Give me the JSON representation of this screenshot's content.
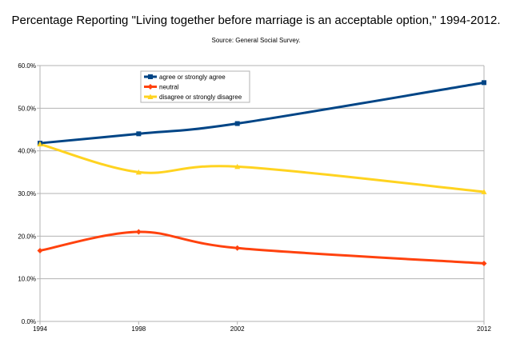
{
  "chart_data": {
    "type": "line",
    "title": "Percentage Reporting \"Living together before marriage is an acceptable option,\" 1994-2012.",
    "subtitle": "Source: General Social Survey.",
    "x": [
      1994,
      1998,
      2002,
      2012
    ],
    "x_tick_labels": [
      "1994",
      "1998",
      "2002",
      "2012"
    ],
    "ylim": [
      0,
      60
    ],
    "y_ticks": [
      0,
      10,
      20,
      30,
      40,
      50,
      60
    ],
    "y_tick_labels": [
      "0.0%",
      "10.0%",
      "20.0%",
      "30.0%",
      "40.0%",
      "50.0%",
      "60.0%"
    ],
    "grid": "horizontal",
    "legend_placement": "top-left (inside plot)",
    "series": [
      {
        "name": "agree or strongly agree",
        "color": "#004586",
        "marker": "square",
        "values": [
          41.8,
          44.0,
          46.4,
          56.0
        ]
      },
      {
        "name": "neutral",
        "color": "#ff420e",
        "marker": "diamond",
        "values": [
          16.6,
          21.0,
          17.2,
          13.6
        ]
      },
      {
        "name": "disagree or strongly disagree",
        "color": "#ffd320",
        "marker": "triangle",
        "values": [
          41.6,
          35.0,
          36.3,
          30.4
        ]
      }
    ]
  }
}
